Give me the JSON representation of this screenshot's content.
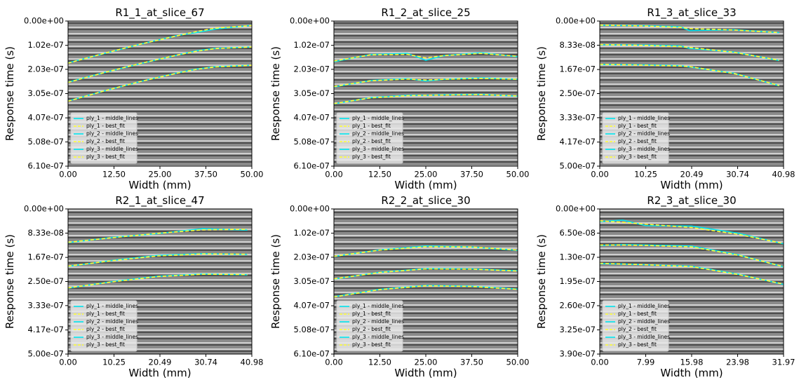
{
  "chart_data": [
    {
      "type": "line",
      "title": "R1_1_at_slice_67",
      "xlabel": "Width (mm)",
      "ylabel": "Response time (s)",
      "legend": "lower left",
      "y_inverted": true,
      "xlim": [
        0,
        50
      ],
      "ylim": [
        0,
        6.1e-07
      ],
      "xticks": [
        {
          "value": 0,
          "label": "0.00"
        },
        {
          "value": 12.5,
          "label": "12.50"
        },
        {
          "value": 25,
          "label": "25.00"
        },
        {
          "value": 37.5,
          "label": "37.50"
        },
        {
          "value": 50,
          "label": "50.00"
        }
      ],
      "yticks": [
        {
          "value": 0,
          "label": "0.00e+00"
        },
        {
          "value": 1.02e-07,
          "label": "1.02e-07"
        },
        {
          "value": 2.03e-07,
          "label": "2.03e-07"
        },
        {
          "value": 3.05e-07,
          "label": "3.05e-07"
        },
        {
          "value": 4.07e-07,
          "label": "4.07e-07"
        },
        {
          "value": 5.08e-07,
          "label": "5.08e-07"
        },
        {
          "value": 6.1e-07,
          "label": "6.10e-07"
        }
      ],
      "x": [
        0,
        10,
        20,
        30,
        35,
        40,
        50
      ],
      "series": [
        {
          "name": "ply_1 - middle_lines",
          "color": "#00e5ee",
          "dashed": false,
          "values": [
            1.76e-07,
            1.36e-07,
            9.6e-08,
            6e-08,
            4.8e-08,
            3.4e-08,
            1.8e-08
          ]
        },
        {
          "name": "ply_1 - best_fit",
          "color": "#ffff33",
          "dashed": true,
          "values": [
            1.77e-07,
            1.35e-07,
            9.6e-08,
            6.1e-08,
            4.4e-08,
            3e-08,
            1.9e-08
          ]
        },
        {
          "name": "ply_2 - middle_lines",
          "color": "#00e5ee",
          "dashed": false,
          "values": [
            2.57e-07,
            2.16e-07,
            1.78e-07,
            1.42e-07,
            1.25e-07,
            1.15e-07,
            1.09e-07
          ]
        },
        {
          "name": "ply_2 - best_fit",
          "color": "#ffff33",
          "dashed": true,
          "values": [
            2.58e-07,
            2.16e-07,
            1.77e-07,
            1.42e-07,
            1.27e-07,
            1.16e-07,
            1.09e-07
          ]
        },
        {
          "name": "ply_3 - middle_lines",
          "color": "#00e5ee",
          "dashed": false,
          "values": [
            3.36e-07,
            2.93e-07,
            2.53e-07,
            2.17e-07,
            2.02e-07,
            1.92e-07,
            1.86e-07
          ]
        },
        {
          "name": "ply_3 - best_fit",
          "color": "#ffff33",
          "dashed": true,
          "values": [
            3.37e-07,
            2.93e-07,
            2.53e-07,
            2.18e-07,
            2.03e-07,
            1.93e-07,
            1.86e-07
          ]
        }
      ]
    },
    {
      "type": "line",
      "title": "R1_2_at_slice_25",
      "xlabel": "Width (mm)",
      "ylabel": "Response time (s)",
      "legend": "lower left",
      "y_inverted": true,
      "xlim": [
        0,
        50
      ],
      "ylim": [
        0,
        6.1e-07
      ],
      "xticks": [
        {
          "value": 0,
          "label": "0.00"
        },
        {
          "value": 12.5,
          "label": "12.50"
        },
        {
          "value": 25,
          "label": "25.00"
        },
        {
          "value": 37.5,
          "label": "37.50"
        },
        {
          "value": 50,
          "label": "50.00"
        }
      ],
      "yticks": [
        {
          "value": 0,
          "label": "0.00e+00"
        },
        {
          "value": 1.02e-07,
          "label": "1.02e-07"
        },
        {
          "value": 2.03e-07,
          "label": "2.03e-07"
        },
        {
          "value": 3.05e-07,
          "label": "3.05e-07"
        },
        {
          "value": 4.07e-07,
          "label": "4.07e-07"
        },
        {
          "value": 5.08e-07,
          "label": "5.08e-07"
        },
        {
          "value": 6.1e-07,
          "label": "6.10e-07"
        }
      ],
      "x": [
        0,
        10,
        20,
        25,
        30,
        40,
        50
      ],
      "series": [
        {
          "name": "ply_1 - middle_lines",
          "color": "#00e5ee",
          "dashed": false,
          "values": [
            1.71e-07,
            1.41e-07,
            1.36e-07,
            1.65e-07,
            1.45e-07,
            1.33e-07,
            1.5e-07
          ]
        },
        {
          "name": "ply_1 - best_fit",
          "color": "#ffff33",
          "dashed": true,
          "values": [
            1.68e-07,
            1.42e-07,
            1.4e-07,
            1.55e-07,
            1.45e-07,
            1.36e-07,
            1.48e-07
          ]
        },
        {
          "name": "ply_2 - middle_lines",
          "color": "#00e5ee",
          "dashed": false,
          "values": [
            2.77e-07,
            2.5e-07,
            2.42e-07,
            2.52e-07,
            2.45e-07,
            2.39e-07,
            2.45e-07
          ]
        },
        {
          "name": "ply_2 - best_fit",
          "color": "#ffff33",
          "dashed": true,
          "values": [
            2.75e-07,
            2.51e-07,
            2.44e-07,
            2.48e-07,
            2.45e-07,
            2.41e-07,
            2.45e-07
          ]
        },
        {
          "name": "ply_3 - middle_lines",
          "color": "#00e5ee",
          "dashed": false,
          "values": [
            3.48e-07,
            3.22e-07,
            3.12e-07,
            3.12e-07,
            3.1e-07,
            3.08e-07,
            3.16e-07
          ]
        },
        {
          "name": "ply_3 - best_fit",
          "color": "#ffff33",
          "dashed": true,
          "values": [
            3.47e-07,
            3.23e-07,
            3.14e-07,
            3.12e-07,
            3.11e-07,
            3.09e-07,
            3.15e-07
          ]
        }
      ]
    },
    {
      "type": "line",
      "title": "R1_3_at_slice_33",
      "xlabel": "Width (mm)",
      "ylabel": "Response time (s)",
      "legend": "lower left",
      "y_inverted": true,
      "xlim": [
        0,
        40.98
      ],
      "ylim": [
        0,
        5e-07
      ],
      "xticks": [
        {
          "value": 0,
          "label": "0.00"
        },
        {
          "value": 10.25,
          "label": "10.25"
        },
        {
          "value": 20.49,
          "label": "20.49"
        },
        {
          "value": 30.74,
          "label": "30.74"
        },
        {
          "value": 40.98,
          "label": "40.98"
        }
      ],
      "yticks": [
        {
          "value": 0,
          "label": "0.00e+00"
        },
        {
          "value": 8.33e-08,
          "label": "8.33e-08"
        },
        {
          "value": 1.67e-07,
          "label": "1.67e-07"
        },
        {
          "value": 2.5e-07,
          "label": "2.50e-07"
        },
        {
          "value": 3.33e-07,
          "label": "3.33e-07"
        },
        {
          "value": 4.17e-07,
          "label": "4.17e-07"
        },
        {
          "value": 5e-07,
          "label": "5.00e-07"
        }
      ],
      "x": [
        0,
        10,
        18,
        20,
        30,
        40
      ],
      "series": [
        {
          "name": "ply_1 - middle_lines",
          "color": "#00e5ee",
          "dashed": false,
          "values": [
            1.5e-08,
            1.6e-08,
            2e-08,
            3.3e-08,
            3e-08,
            4e-08
          ]
        },
        {
          "name": "ply_1 - best_fit",
          "color": "#ffff33",
          "dashed": true,
          "values": [
            1.4e-08,
            1.7e-08,
            2.2e-08,
            2.6e-08,
            3.1e-08,
            4e-08
          ]
        },
        {
          "name": "ply_2 - middle_lines",
          "color": "#00e5ee",
          "dashed": false,
          "values": [
            8.2e-08,
            8.3e-08,
            8.6e-08,
            9.4e-08,
            1.07e-07,
            1.36e-07
          ]
        },
        {
          "name": "ply_2 - best_fit",
          "color": "#ffff33",
          "dashed": true,
          "values": [
            8.1e-08,
            8.4e-08,
            8.8e-08,
            9.1e-08,
            1.08e-07,
            1.35e-07
          ]
        },
        {
          "name": "ply_3 - middle_lines",
          "color": "#00e5ee",
          "dashed": false,
          "values": [
            1.5e-07,
            1.51e-07,
            1.54e-07,
            1.58e-07,
            1.8e-07,
            2.23e-07
          ]
        },
        {
          "name": "ply_3 - best_fit",
          "color": "#ffff33",
          "dashed": true,
          "values": [
            1.49e-07,
            1.52e-07,
            1.55e-07,
            1.57e-07,
            1.81e-07,
            2.22e-07
          ]
        }
      ]
    },
    {
      "type": "line",
      "title": "R2_1_at_slice_47",
      "xlabel": "Width (mm)",
      "ylabel": "Response time (s)",
      "legend": "lower left",
      "y_inverted": true,
      "xlim": [
        0,
        40.98
      ],
      "ylim": [
        0,
        5e-07
      ],
      "xticks": [
        {
          "value": 0,
          "label": "0.00"
        },
        {
          "value": 10.25,
          "label": "10.25"
        },
        {
          "value": 20.49,
          "label": "20.49"
        },
        {
          "value": 30.74,
          "label": "30.74"
        },
        {
          "value": 40.98,
          "label": "40.98"
        }
      ],
      "yticks": [
        {
          "value": 0,
          "label": "0.00e+00"
        },
        {
          "value": 8.33e-08,
          "label": "8.33e-08"
        },
        {
          "value": 1.67e-07,
          "label": "1.67e-07"
        },
        {
          "value": 2.5e-07,
          "label": "2.50e-07"
        },
        {
          "value": 3.33e-07,
          "label": "3.33e-07"
        },
        {
          "value": 4.17e-07,
          "label": "4.17e-07"
        },
        {
          "value": 5e-07,
          "label": "5.00e-07"
        }
      ],
      "x": [
        0,
        10,
        20,
        30,
        40
      ],
      "series": [
        {
          "name": "ply_1 - middle_lines",
          "color": "#00e5ee",
          "dashed": false,
          "values": [
            1.16e-07,
            9.8e-08,
            8.5e-08,
            6.8e-08,
            7.3e-08
          ]
        },
        {
          "name": "ply_1 - best_fit",
          "color": "#ffff33",
          "dashed": true,
          "values": [
            1.15e-07,
            9.9e-08,
            8.4e-08,
            7.2e-08,
            7e-08
          ]
        },
        {
          "name": "ply_2 - middle_lines",
          "color": "#00e5ee",
          "dashed": false,
          "values": [
            1.98e-07,
            1.77e-07,
            1.6e-07,
            1.54e-07,
            1.57e-07
          ]
        },
        {
          "name": "ply_2 - best_fit",
          "color": "#ffff33",
          "dashed": true,
          "values": [
            1.97e-07,
            1.78e-07,
            1.62e-07,
            1.55e-07,
            1.56e-07
          ]
        },
        {
          "name": "ply_3 - middle_lines",
          "color": "#00e5ee",
          "dashed": false,
          "values": [
            2.73e-07,
            2.5e-07,
            2.32e-07,
            2.24e-07,
            2.27e-07
          ]
        },
        {
          "name": "ply_3 - best_fit",
          "color": "#ffff33",
          "dashed": true,
          "values": [
            2.72e-07,
            2.51e-07,
            2.33e-07,
            2.25e-07,
            2.26e-07
          ]
        }
      ]
    },
    {
      "type": "line",
      "title": "R2_2_at_slice_30",
      "xlabel": "Width (mm)",
      "ylabel": "Response time (s)",
      "legend": "lower left",
      "y_inverted": true,
      "xlim": [
        0,
        50
      ],
      "ylim": [
        0,
        6.1e-07
      ],
      "xticks": [
        {
          "value": 0,
          "label": "0.00"
        },
        {
          "value": 12.5,
          "label": "12.50"
        },
        {
          "value": 25,
          "label": "25.00"
        },
        {
          "value": 37.5,
          "label": "37.50"
        },
        {
          "value": 50,
          "label": "50.00"
        }
      ],
      "yticks": [
        {
          "value": 0,
          "label": "0.00e+00"
        },
        {
          "value": 1.02e-07,
          "label": "1.02e-07"
        },
        {
          "value": 2.03e-07,
          "label": "2.03e-07"
        },
        {
          "value": 3.05e-07,
          "label": "3.05e-07"
        },
        {
          "value": 4.07e-07,
          "label": "4.07e-07"
        },
        {
          "value": 5.08e-07,
          "label": "5.08e-07"
        },
        {
          "value": 6.1e-07,
          "label": "6.10e-07"
        }
      ],
      "x": [
        0,
        12.5,
        25,
        37.5,
        50
      ],
      "series": [
        {
          "name": "ply_1 - middle_lines",
          "color": "#00e5ee",
          "dashed": false,
          "values": [
            2e-07,
            1.72e-07,
            1.56e-07,
            1.6e-07,
            1.74e-07
          ]
        },
        {
          "name": "ply_1 - best_fit",
          "color": "#ffff33",
          "dashed": true,
          "values": [
            1.99e-07,
            1.73e-07,
            1.59e-07,
            1.6e-07,
            1.73e-07
          ]
        },
        {
          "name": "ply_2 - middle_lines",
          "color": "#00e5ee",
          "dashed": false,
          "values": [
            2.95e-07,
            2.66e-07,
            2.51e-07,
            2.52e-07,
            2.6e-07
          ]
        },
        {
          "name": "ply_2 - best_fit",
          "color": "#ffff33",
          "dashed": true,
          "values": [
            2.94e-07,
            2.67e-07,
            2.52e-07,
            2.53e-07,
            2.61e-07
          ]
        },
        {
          "name": "ply_3 - middle_lines",
          "color": "#00e5ee",
          "dashed": false,
          "values": [
            3.69e-07,
            3.38e-07,
            3.22e-07,
            3.25e-07,
            3.37e-07
          ]
        },
        {
          "name": "ply_3 - best_fit",
          "color": "#ffff33",
          "dashed": true,
          "values": [
            3.7e-07,
            3.39e-07,
            3.23e-07,
            3.26e-07,
            3.38e-07
          ]
        }
      ]
    },
    {
      "type": "line",
      "title": "R2_3_at_slice_30",
      "xlabel": "Width (mm)",
      "ylabel": "Response time (s)",
      "legend": "lower left",
      "y_inverted": true,
      "xlim": [
        0,
        31.97
      ],
      "ylim": [
        0,
        3.9e-07
      ],
      "xticks": [
        {
          "value": 0,
          "label": "0.00"
        },
        {
          "value": 7.99,
          "label": "7.99"
        },
        {
          "value": 15.98,
          "label": "15.98"
        },
        {
          "value": 23.98,
          "label": "23.98"
        },
        {
          "value": 31.97,
          "label": "31.97"
        }
      ],
      "yticks": [
        {
          "value": 0,
          "label": "0.00e+00"
        },
        {
          "value": 6.5e-08,
          "label": "6.50e-08"
        },
        {
          "value": 1.3e-07,
          "label": "1.30e-07"
        },
        {
          "value": 1.95e-07,
          "label": "1.95e-07"
        },
        {
          "value": 2.6e-07,
          "label": "2.60e-07"
        },
        {
          "value": 3.25e-07,
          "label": "3.25e-07"
        },
        {
          "value": 3.9e-07,
          "label": "3.90e-07"
        }
      ],
      "x": [
        0,
        4,
        8,
        16,
        24,
        32
      ],
      "series": [
        {
          "name": "ply_1 - middle_lines",
          "color": "#00e5ee",
          "dashed": false,
          "values": [
            3.4e-08,
            3e-08,
            4.5e-08,
            4.6e-08,
            6.5e-08,
            9.4e-08
          ]
        },
        {
          "name": "ply_1 - best_fit",
          "color": "#ffff33",
          "dashed": true,
          "values": [
            3.2e-08,
            3.6e-08,
            4.1e-08,
            5e-08,
            6.8e-08,
            9.3e-08
          ]
        },
        {
          "name": "ply_2 - middle_lines",
          "color": "#00e5ee",
          "dashed": false,
          "values": [
            9.8e-08,
            9.6e-08,
            9.7e-08,
            1e-07,
            1.23e-07,
            1.56e-07
          ]
        },
        {
          "name": "ply_2 - best_fit",
          "color": "#ffff33",
          "dashed": true,
          "values": [
            9.7e-08,
            9.7e-08,
            9.8e-08,
            1.02e-07,
            1.24e-07,
            1.55e-07
          ]
        },
        {
          "name": "ply_3 - middle_lines",
          "color": "#00e5ee",
          "dashed": false,
          "values": [
            1.47e-07,
            1.48e-07,
            1.5e-07,
            1.54e-07,
            1.75e-07,
            2.03e-07
          ]
        },
        {
          "name": "ply_3 - best_fit",
          "color": "#ffff33",
          "dashed": true,
          "values": [
            1.46e-07,
            1.48e-07,
            1.5e-07,
            1.55e-07,
            1.76e-07,
            2.02e-07
          ]
        }
      ]
    }
  ]
}
